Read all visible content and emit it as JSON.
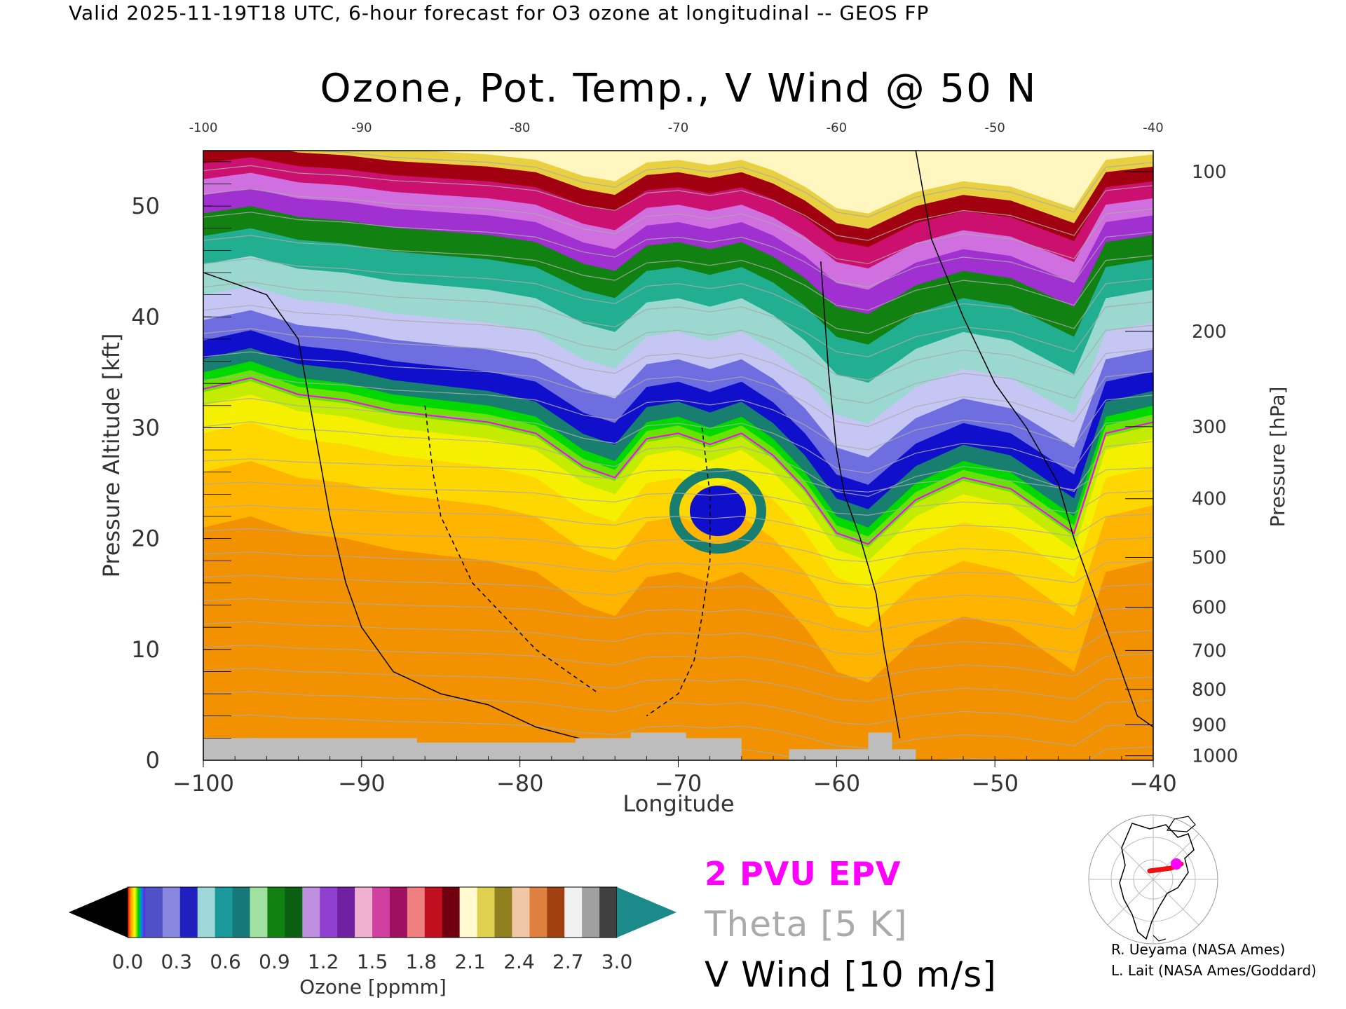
{
  "header": "Valid 2025-11-19T18 UTC, 6-hour forecast for O3 ozone at longitudinal -- GEOS FP",
  "chart_data": {
    "type": "heatmap",
    "title": "Ozone, Pot. Temp., V Wind @ 50 N",
    "xlabel": "Longitude",
    "ylabel_left": "Pressure Altitude [kft]",
    "ylabel_right": "Pressure [hPa]",
    "xlim": [
      -100,
      -40
    ],
    "ylim": [
      0,
      55
    ],
    "x_ticks": [
      -100,
      -90,
      -80,
      -70,
      -60,
      -50,
      -40
    ],
    "y_ticks": [
      0,
      10,
      20,
      30,
      40,
      50
    ],
    "pressure_ticks": [
      {
        "hpa": "100",
        "kft": 53.1
      },
      {
        "hpa": "200",
        "kft": 38.7
      },
      {
        "hpa": "300",
        "kft": 30.1
      },
      {
        "hpa": "400",
        "kft": 23.6
      },
      {
        "hpa": "500",
        "kft": 18.3
      },
      {
        "hpa": "600",
        "kft": 13.8
      },
      {
        "hpa": "700",
        "kft": 9.9
      },
      {
        "hpa": "800",
        "kft": 6.4
      },
      {
        "hpa": "900",
        "kft": 3.2
      },
      {
        "hpa": "1000",
        "kft": 0.4
      }
    ],
    "colorbar": {
      "label": "Ozone [ppmm]",
      "ticks": [
        "0.0",
        "0.3",
        "0.6",
        "0.9",
        "1.2",
        "1.5",
        "1.8",
        "2.1",
        "2.4",
        "2.7",
        "3.0"
      ],
      "range": [
        0,
        3.0
      ]
    },
    "ozone_profile": {
      "longitudes": [
        -100,
        -97,
        -94,
        -91,
        -88,
        -85,
        -82,
        -79,
        -76,
        -74,
        -72,
        -70,
        -68,
        -66,
        -64,
        -62,
        -60,
        -58,
        -55,
        -52,
        -49,
        -47,
        -45,
        -43,
        -40
      ],
      "tropopause_kft": [
        35,
        36,
        34.5,
        34,
        33,
        32.5,
        32,
        31,
        28,
        27,
        30.5,
        31,
        30,
        31,
        29,
        26,
        22,
        21,
        25,
        27,
        26,
        24,
        22,
        31,
        32
      ],
      "colors_low_to_high": [
        "#f39200",
        "#ffb400",
        "#ffd700",
        "#f5f000",
        "#c4ec00",
        "#66e400",
        "#00d800",
        "#177e70",
        "#1010cc",
        "#6e6ee0",
        "#c6c6f4",
        "#9ad8d0",
        "#22ae90",
        "#118111",
        "#a030d0",
        "#d070e0",
        "#cc1070",
        "#a00010",
        "#e8d040",
        "#fff6c0"
      ]
    }
  },
  "legend": {
    "epv": "2 PVU EPV",
    "theta": "Theta [5 K]",
    "vwind": "V Wind [10 m/s]",
    "epv_color": "#ff00ff",
    "theta_color": "#aaaaaa"
  },
  "credits": {
    "line1": "R. Ueyama (NASA Ames)",
    "line2": "L. Lait (NASA Ames/Goddard)"
  },
  "inset_map": "northern-hemisphere-map-with-red-track"
}
